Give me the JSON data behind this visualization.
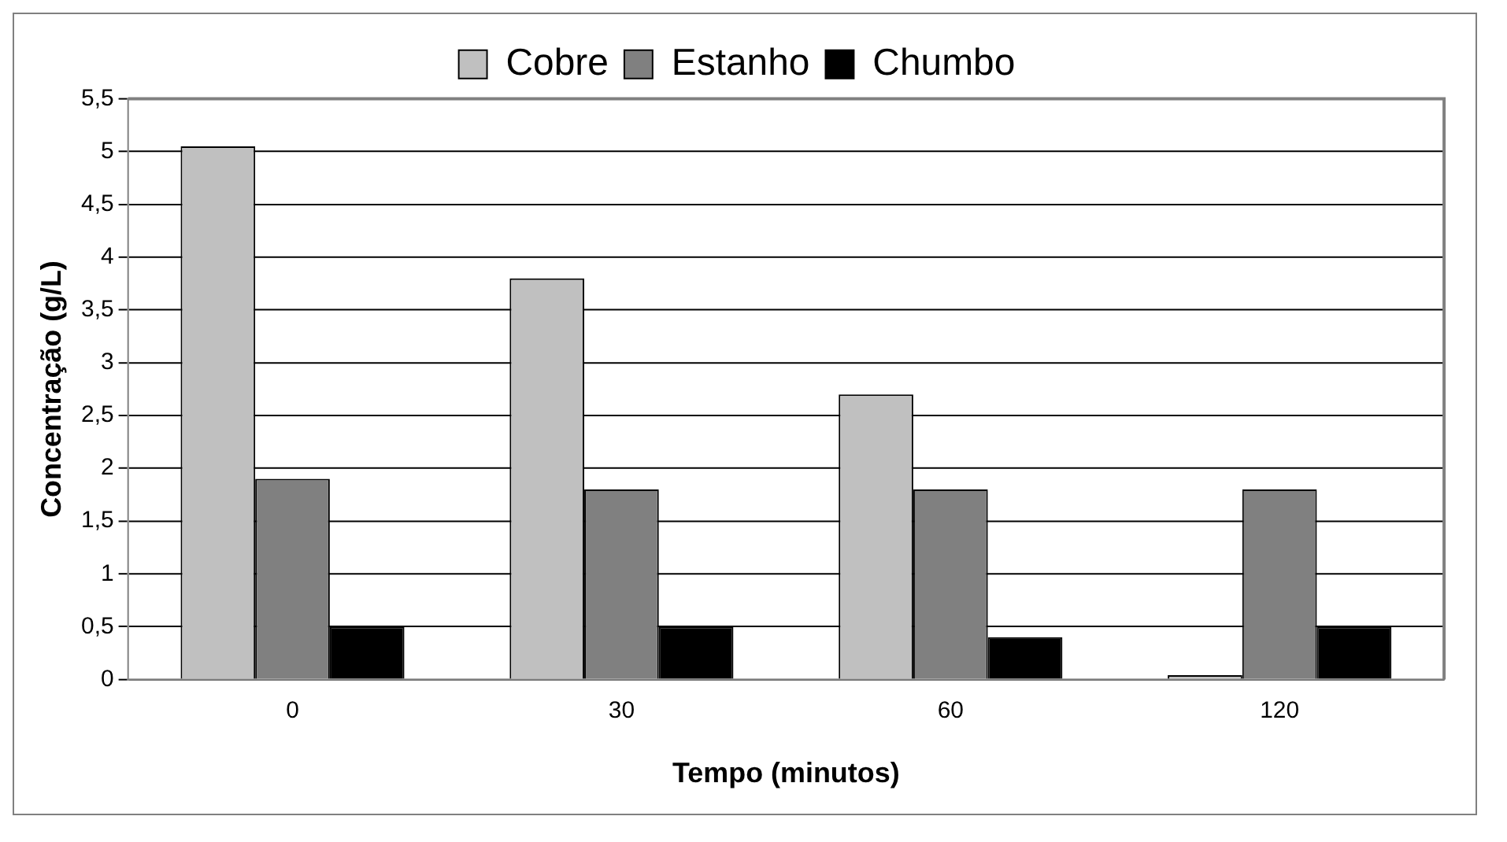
{
  "chart_data": {
    "type": "bar",
    "xlabel": "Tempo (minutos)",
    "ylabel": "Concentração (g/L)",
    "categories": [
      "0",
      "30",
      "60",
      "120"
    ],
    "series": [
      {
        "name": "Cobre",
        "color": "#c0c0c0",
        "values": [
          5.05,
          3.8,
          2.7,
          0.04
        ]
      },
      {
        "name": "Estanho",
        "color": "#808080",
        "values": [
          1.9,
          1.8,
          1.8,
          1.8
        ]
      },
      {
        "name": "Chumbo",
        "color": "#000000",
        "values": [
          0.5,
          0.5,
          0.4,
          0.5
        ]
      }
    ],
    "ylim": [
      0,
      5.5
    ],
    "yticks": [
      0,
      {
        "value": 0.5,
        "label": "0,5"
      },
      1,
      {
        "value": 1.5,
        "label": "1,5"
      },
      2,
      {
        "value": 2.5,
        "label": "2,5"
      },
      3,
      {
        "value": 3.5,
        "label": "3,5"
      },
      4,
      {
        "value": 4.5,
        "label": "4,5"
      },
      5,
      {
        "value": 5.5,
        "label": "5,5"
      }
    ],
    "grid": "y",
    "legend": "top"
  }
}
